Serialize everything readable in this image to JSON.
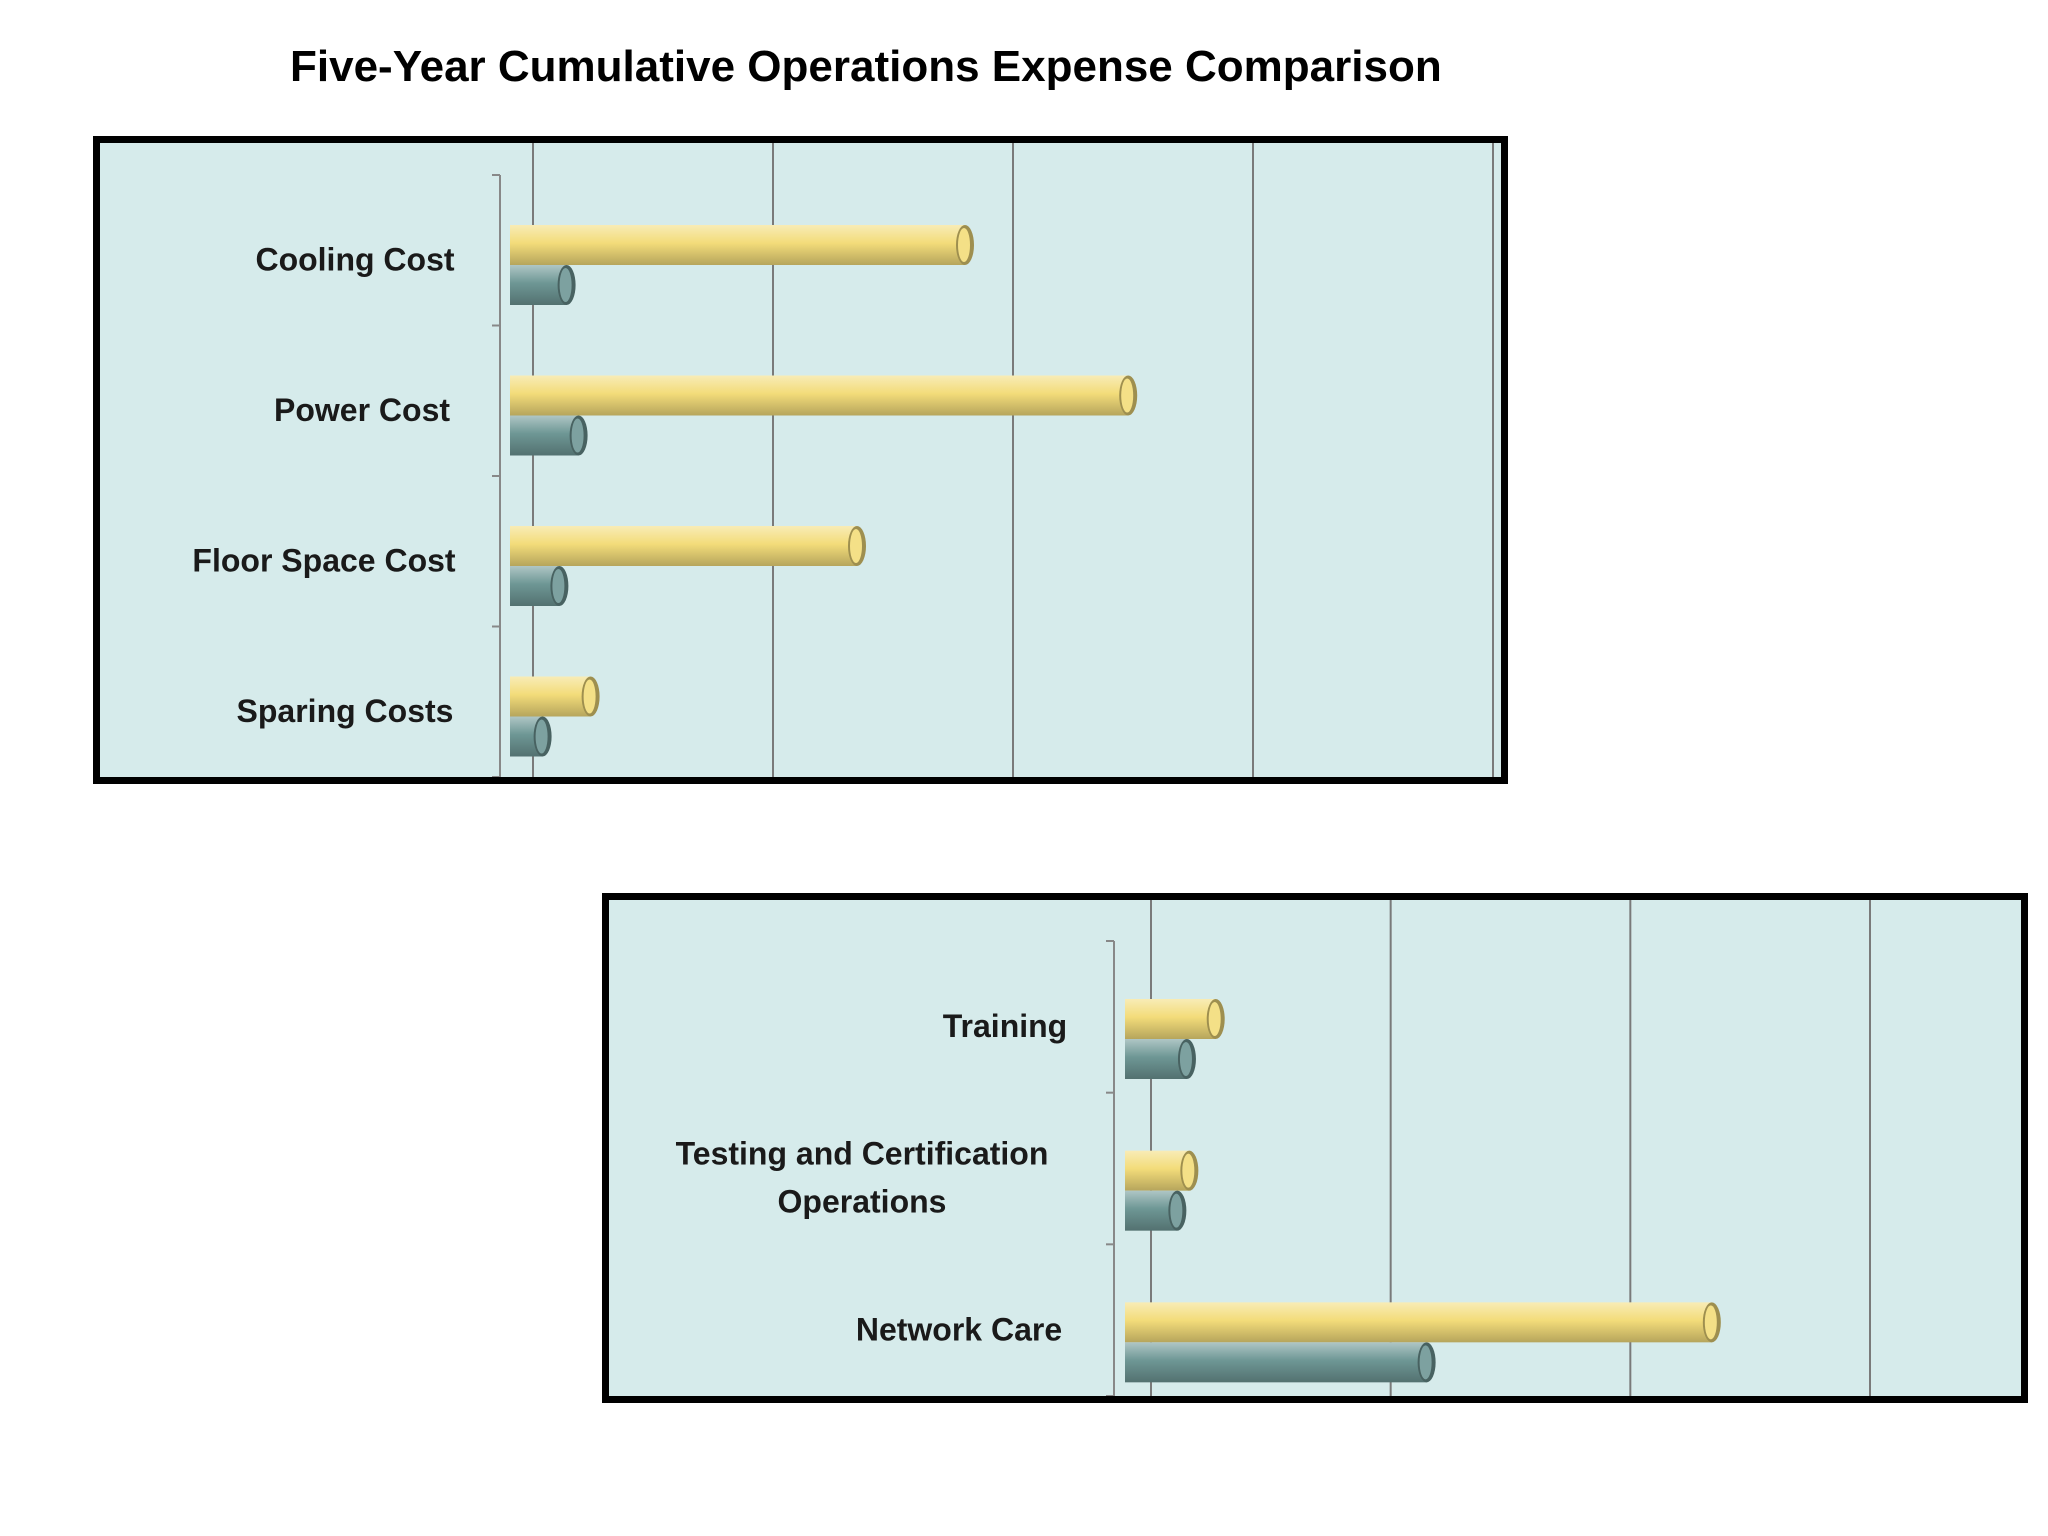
{
  "page": {
    "title": "Five-Year Cumulative Operations Expense Comparison"
  },
  "colors": {
    "series_a": "#f3dc7a",
    "series_b": "#6e9795",
    "plot_bg": "#d6ebeb",
    "frame": "#000000",
    "grid": "#7a7a7a"
  },
  "chart_data": [
    {
      "type": "bar",
      "orientation": "horizontal",
      "title": "",
      "xlabel": "",
      "ylabel": "",
      "grid": true,
      "legend": "none",
      "xlim": [
        0,
        4
      ],
      "categories": [
        "Cooling Cost",
        "Power Cost",
        "Floor Space Cost",
        "Sparing Costs"
      ],
      "series": [
        {
          "values": [
            1.8,
            2.48,
            1.35,
            0.24
          ],
          "color": "#f3dc7a"
        },
        {
          "values": [
            0.14,
            0.19,
            0.11,
            0.04
          ],
          "color": "#6e9795"
        }
      ]
    },
    {
      "type": "bar",
      "orientation": "horizontal",
      "title": "",
      "xlabel": "",
      "ylabel": "",
      "grid": true,
      "legend": "none",
      "xlim": [
        0,
        3
      ],
      "categories": [
        "Training",
        "Testing and Certification Operations",
        "Network Care"
      ],
      "series": [
        {
          "values": [
            0.27,
            0.16,
            2.34
          ],
          "color": "#f3dc7a"
        },
        {
          "values": [
            0.15,
            0.11,
            1.15
          ],
          "color": "#6e9795"
        }
      ]
    }
  ]
}
